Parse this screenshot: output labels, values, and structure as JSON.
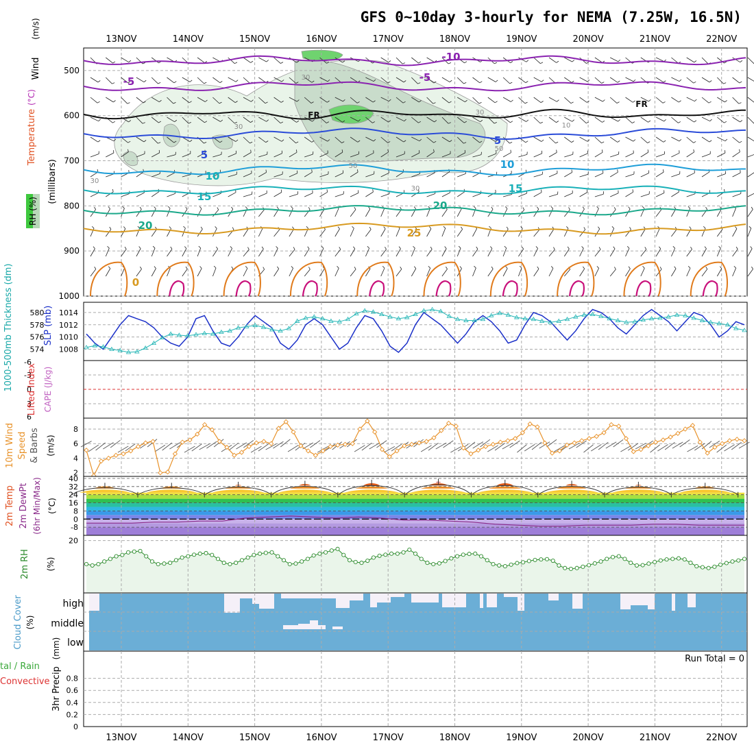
{
  "title": "GFS 0~10day 3-hourly for NEMA (7.25W, 16.5N)",
  "dates": [
    "13NOV",
    "14NOV",
    "15NOV",
    "16NOV",
    "17NOV",
    "18NOV",
    "19NOV",
    "20NOV",
    "21NOV",
    "22NOV"
  ],
  "colors": {
    "grid": "#aaaaaa",
    "slp": "#1a2fc8",
    "thickness": "#22b5b5",
    "wind10m": "#e8922a",
    "barb": "#555555",
    "rh2m": "#2a8a2a",
    "rh2mFill": "#eaf5ea",
    "cloudFill": "#6baed6",
    "cloudClear": "#f5f0f8",
    "lifted": "#dd3333",
    "tempRed": "#c81e1e",
    "tempOrange": "#f07818"
  },
  "labels": {
    "upper_wind": "Wind",
    "upper_wind_units": "(m/s)",
    "upper_temp": "Temperature",
    "upper_temp_units": "(°C)",
    "upper_rh": "RH (%)",
    "upper_axis": "(millibars)",
    "thick": "1000-500mb Thickness (dm)",
    "slp": "SLP (mb)",
    "lifted": "Lifted Index",
    "cape": "CAPE (J/kg)",
    "wind10_a": "10m Wind",
    "wind10_b": "Speed",
    "wind10_c": "& Barbs",
    "wind10_units": "(m/s)",
    "temp_a": "2m Temp",
    "temp_b": "2m DewPt",
    "temp_c": "(6hr Min/Max)",
    "temp_units": "(°C)",
    "rh2m": "2m RH",
    "rh2m_units": "(%)",
    "cloud": "Cloud Cover",
    "cloud_units": "(%)",
    "precip_a": "tal / Rain",
    "precip_b": "Convective",
    "precip_c": "3hr Precip",
    "precip_units": "(mm)",
    "run_total": "Run Total = 0"
  },
  "chart_data": [
    {
      "type": "line",
      "panel": "upper-air cross-section",
      "yaxis": "pressure (mb)",
      "y_ticks": [
        500,
        600,
        700,
        800,
        900,
        1000
      ],
      "ylim": [
        1000,
        450
      ],
      "isotherm_labels": [
        {
          "text": "-10",
          "value": -10
        },
        {
          "text": "-5",
          "value": -5
        },
        {
          "text": "5",
          "value": 5
        },
        {
          "text": "10",
          "value": 10
        },
        {
          "text": "15",
          "value": 15
        },
        {
          "text": "20",
          "value": 20
        },
        {
          "text": "25",
          "value": 25
        },
        {
          "text": "0",
          "value": 0
        },
        {
          "text": "FR",
          "value": 0
        }
      ],
      "rh_labels": [
        "30",
        "50",
        "10"
      ]
    },
    {
      "type": "line",
      "panel": "slp-thickness",
      "thickness_ticks": [
        574,
        576,
        578,
        580
      ],
      "slp_ticks": [
        1008,
        1010,
        1012,
        1014
      ],
      "slp_series": [
        1010.5,
        1009,
        1008,
        1010,
        1012,
        1013.5,
        1013,
        1012.5,
        1011.5,
        1010,
        1009,
        1008.5,
        1010,
        1013,
        1013.5,
        1011,
        1009,
        1008.5,
        1010,
        1012,
        1013.5,
        1012.5,
        1011.5,
        1009,
        1008,
        1009.5,
        1012,
        1013,
        1012,
        1010,
        1008,
        1009,
        1011.5,
        1013.5,
        1013,
        1011,
        1008.5,
        1007.5,
        1009,
        1012,
        1014,
        1013,
        1012,
        1010.5,
        1009,
        1010.5,
        1012.5,
        1013.5,
        1012.5,
        1011,
        1009,
        1009.5,
        1012,
        1014,
        1013.5,
        1012.5,
        1011,
        1009.5,
        1011,
        1013,
        1014.5,
        1014,
        1013,
        1011.5,
        1010.5,
        1012,
        1013.5,
        1014.5,
        1013.5,
        1012.5,
        1011,
        1012.5,
        1014,
        1013.5,
        1012,
        1010,
        1011,
        1012.5,
        1012
      ],
      "thickness_series": [
        574.3,
        574.6,
        574.4,
        574.0,
        573.8,
        573.5,
        573.6,
        574.2,
        575.0,
        575.9,
        576.5,
        576.3,
        576.2,
        576.4,
        576.6,
        576.5,
        576.8,
        577.0,
        577.5,
        577.7,
        577.9,
        577.6,
        577.2,
        577.0,
        577.4,
        578.6,
        579.1,
        579.3,
        579.0,
        578.6,
        578.5,
        578.9,
        579.8,
        580.3,
        580.1,
        579.7,
        579.3,
        579.0,
        579.2,
        579.7,
        580.3,
        580.5,
        580.2,
        579.4,
        578.9,
        578.7,
        578.7,
        578.9,
        579.5,
        579.9,
        579.6,
        579.2,
        579.0,
        578.9,
        578.6,
        578.4,
        578.6,
        578.9,
        579.3,
        579.6,
        579.7,
        579.4,
        579.0,
        578.7,
        578.4,
        578.5,
        578.8,
        579.0,
        579.1,
        579.3,
        579.6,
        579.5,
        579.1,
        578.7,
        578.4,
        578.2,
        578.0,
        577.4,
        577.1
      ]
    },
    {
      "type": "line",
      "panel": "lifted-cape",
      "y_ticks": [
        "-6",
        "-3",
        "0",
        "3",
        "6"
      ],
      "lifted_index_zero": 0,
      "cape": []
    },
    {
      "type": "line",
      "panel": "wind10m",
      "y_ticks": [
        2,
        4,
        6,
        8
      ],
      "ylim": [
        1.5,
        9.5
      ],
      "speed_series": [
        5.1,
        1.6,
        3.6,
        4.0,
        4.4,
        4.6,
        5.0,
        5.6,
        6.1,
        6.3,
        2.0,
        2.1,
        4.6,
        6.2,
        6.5,
        7.3,
        8.6,
        7.9,
        6.3,
        5.5,
        4.4,
        4.8,
        5.6,
        6.1,
        6.3,
        6.0,
        8.1,
        9.0,
        7.6,
        5.7,
        5.0,
        4.4,
        5.0,
        5.6,
        5.8,
        5.9,
        6.0,
        8.0,
        9.1,
        7.6,
        5.2,
        4.2,
        5.0,
        5.7,
        5.9,
        6.1,
        6.3,
        6.8,
        7.8,
        8.8,
        8.4,
        5.4,
        4.6,
        5.1,
        5.6,
        5.9,
        6.2,
        6.4,
        6.7,
        7.5,
        8.7,
        8.3,
        6.1,
        4.7,
        5.0,
        5.8,
        6.1,
        6.4,
        6.7,
        7.0,
        7.5,
        8.6,
        8.4,
        6.7,
        4.9,
        5.2,
        5.7,
        6.2,
        6.5,
        6.9,
        7.4,
        8.0,
        8.5,
        6.2,
        4.7,
        5.5,
        6.0,
        6.4,
        6.6,
        6.4
      ]
    },
    {
      "type": "area",
      "panel": "temp2m",
      "y_ticks": [
        "40",
        "32",
        "24",
        "16",
        "8",
        "0",
        "-8"
      ],
      "ylim": [
        -16,
        42
      ],
      "max_temps": [
        33,
        33,
        34,
        35,
        36,
        37,
        36,
        35,
        34,
        33
      ],
      "min_temps": [
        24,
        24,
        24,
        24,
        24,
        24,
        24,
        24,
        24,
        24
      ],
      "dewpoint_series": [
        -4,
        -4,
        -4,
        -3,
        -3,
        -2,
        -2,
        1,
        2,
        3,
        2,
        1,
        2,
        1,
        -1,
        -1,
        -2,
        -3,
        -5,
        -6,
        -7,
        -7,
        -6,
        -6,
        -6,
        -5,
        -5,
        -6,
        -6,
        -6
      ]
    },
    {
      "type": "line",
      "panel": "rh2m",
      "y_ticks": [
        "20"
      ],
      "ylim": [
        0,
        22
      ],
      "series": [
        11,
        10.5,
        11,
        12,
        13,
        14,
        14.5,
        15.5,
        15.8,
        16,
        14,
        12,
        11,
        11.2,
        11.5,
        12.5,
        13.5,
        14,
        14.6,
        15,
        15.2,
        14.5,
        13,
        11.5,
        11,
        11.5,
        12.5,
        13.5,
        14.5,
        15,
        15.3,
        15.5,
        14,
        12.5,
        11,
        11.2,
        12,
        13,
        14.3,
        15,
        15.5,
        16.2,
        16.8,
        14.5,
        12.5,
        11.8,
        11.5,
        12.3,
        13.5,
        14.2,
        14.6,
        15,
        15,
        15.5,
        16.5,
        15,
        13,
        11.5,
        11,
        11.3,
        12.2,
        13.2,
        14,
        14.6,
        14.9,
        15,
        14,
        12.5,
        11,
        10.5,
        10.2,
        10.8,
        11.4,
        11.7,
        12.2,
        12.6,
        12.8,
        12.9,
        12.3,
        10.5,
        9.5,
        9.2,
        9.5,
        10,
        10.6,
        11.3,
        12,
        13,
        13.7,
        14,
        13,
        11.5,
        10.5,
        10.6,
        11.2,
        11.8,
        12.4,
        12.8,
        13,
        13.2,
        12.8,
        11.5,
        10.2,
        9.8,
        9.5,
        10,
        10.8,
        11.4,
        12,
        12.4,
        13
      ]
    },
    {
      "type": "bar",
      "panel": "cloud-cover",
      "layers": [
        "high",
        "middle",
        "low"
      ],
      "high_clear_blocks": [
        {
          "start": 0.0,
          "end": 0.6,
          "frac": 0.4
        },
        {
          "start": 0.6,
          "end": 1.1,
          "frac": 0.15
        }
      ]
    },
    {
      "type": "bar",
      "panel": "precip",
      "y_ticks": [
        "0",
        "0.2",
        "0.4",
        "0.6",
        "0.8"
      ],
      "ylim": [
        0,
        1.0
      ],
      "values": []
    }
  ]
}
